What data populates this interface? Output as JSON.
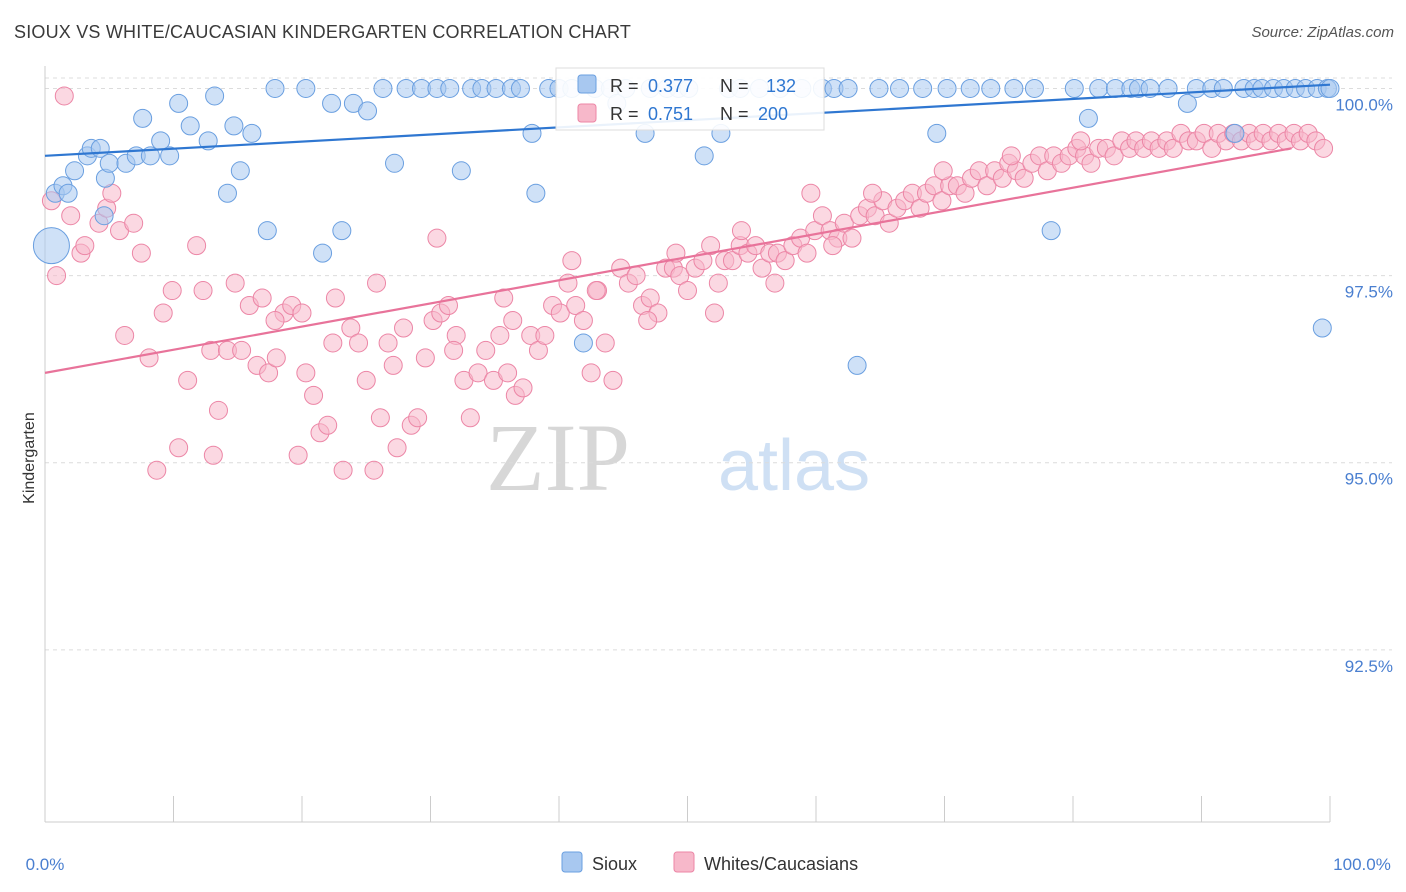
{
  "header": {
    "title": "SIOUX VS WHITE/CAUCASIAN KINDERGARTEN CORRELATION CHART",
    "source": "Source: ZipAtlas.com"
  },
  "watermark": {
    "zip": "ZIP",
    "atlas": "atlas"
  },
  "colors": {
    "sioux_fill": "#a8c8f0",
    "sioux_stroke": "#6a9fe0",
    "sioux_line": "#2f77d1",
    "white_fill": "#f7b8ca",
    "white_stroke": "#ec86a6",
    "white_line": "#e8739a",
    "tick_label": "#4a7fd0",
    "grid": "#dcdcdc"
  },
  "legend_box": {
    "rows": [
      {
        "r_label": "R =",
        "r_value": "0.377",
        "n_label": "N =",
        "n_value": "132"
      },
      {
        "r_label": "R =",
        "r_value": "0.751",
        "n_label": "N =",
        "n_value": "200"
      }
    ]
  },
  "bottom_legend": {
    "items": [
      "Sioux",
      "Whites/Caucasians"
    ]
  },
  "chart_data": {
    "type": "scatter",
    "title": "SIOUX VS WHITE/CAUCASIAN KINDERGARTEN CORRELATION CHART",
    "xlabel": "",
    "ylabel": "Kindergarten",
    "xlim": [
      0,
      100
    ],
    "ylim": [
      90.2,
      100.3
    ],
    "x_tick_labels": [
      "0.0%",
      "100.0%"
    ],
    "y_ticks": [
      92.5,
      95.0,
      97.5,
      100.0
    ],
    "y_tick_labels": [
      "92.5%",
      "95.0%",
      "97.5%",
      "100.0%"
    ],
    "grid": true,
    "legend_position": "bottom-center",
    "series": [
      {
        "name": "Sioux",
        "r": 0.377,
        "n": 132,
        "trend": {
          "x": [
            0,
            100
          ],
          "y": [
            99.1,
            100.05
          ]
        },
        "points": [
          [
            0.5,
            97.9
          ],
          [
            0.8,
            98.6
          ],
          [
            1.4,
            98.7
          ],
          [
            1.8,
            98.6
          ],
          [
            2.3,
            98.9
          ],
          [
            3.3,
            99.1
          ],
          [
            3.6,
            99.2
          ],
          [
            4.3,
            99.2
          ],
          [
            4.7,
            98.8
          ],
          [
            5.0,
            99.0
          ],
          [
            4.6,
            98.3
          ],
          [
            6.3,
            99.0
          ],
          [
            7.1,
            99.1
          ],
          [
            7.6,
            99.6
          ],
          [
            8.2,
            99.1
          ],
          [
            9.0,
            99.3
          ],
          [
            9.7,
            99.1
          ],
          [
            10.4,
            99.8
          ],
          [
            11.3,
            99.5
          ],
          [
            12.7,
            99.3
          ],
          [
            13.2,
            99.9
          ],
          [
            14.2,
            98.6
          ],
          [
            14.7,
            99.5
          ],
          [
            15.2,
            98.9
          ],
          [
            16.1,
            99.4
          ],
          [
            17.3,
            98.1
          ],
          [
            17.9,
            100.0
          ],
          [
            20.3,
            100.0
          ],
          [
            21.6,
            97.8
          ],
          [
            22.3,
            99.8
          ],
          [
            23.1,
            98.1
          ],
          [
            24.0,
            99.8
          ],
          [
            25.1,
            99.7
          ],
          [
            26.3,
            100.0
          ],
          [
            27.2,
            99.0
          ],
          [
            28.1,
            100.0
          ],
          [
            29.3,
            100.0
          ],
          [
            30.5,
            100.0
          ],
          [
            31.5,
            100.0
          ],
          [
            32.4,
            98.9
          ],
          [
            33.2,
            100.0
          ],
          [
            34.0,
            100.0
          ],
          [
            35.1,
            100.0
          ],
          [
            36.3,
            100.0
          ],
          [
            37.0,
            100.0
          ],
          [
            37.9,
            99.4
          ],
          [
            38.2,
            98.6
          ],
          [
            39.2,
            100.0
          ],
          [
            40.0,
            100.0
          ],
          [
            41.0,
            100.0
          ],
          [
            41.9,
            96.6
          ],
          [
            42.8,
            100.0
          ],
          [
            44.0,
            100.0
          ],
          [
            44.5,
            99.8
          ],
          [
            45.2,
            100.0
          ],
          [
            46.7,
            99.4
          ],
          [
            47.1,
            100.0
          ],
          [
            48.4,
            100.0
          ],
          [
            49.3,
            100.0
          ],
          [
            50.1,
            100.0
          ],
          [
            51.3,
            99.1
          ],
          [
            52.6,
            99.4
          ],
          [
            53.2,
            100.0
          ],
          [
            54.1,
            100.0
          ],
          [
            55.6,
            100.0
          ],
          [
            57.2,
            100.0
          ],
          [
            58.9,
            100.0
          ],
          [
            60.5,
            100.0
          ],
          [
            61.4,
            100.0
          ],
          [
            62.5,
            100.0
          ],
          [
            63.2,
            96.3
          ],
          [
            64.9,
            100.0
          ],
          [
            66.5,
            100.0
          ],
          [
            68.3,
            100.0
          ],
          [
            69.4,
            99.4
          ],
          [
            70.2,
            100.0
          ],
          [
            72.0,
            100.0
          ],
          [
            73.6,
            100.0
          ],
          [
            75.4,
            100.0
          ],
          [
            77.0,
            100.0
          ],
          [
            78.3,
            98.1
          ],
          [
            80.1,
            100.0
          ],
          [
            81.2,
            99.6
          ],
          [
            82.0,
            100.0
          ],
          [
            83.3,
            100.0
          ],
          [
            84.5,
            100.0
          ],
          [
            85.1,
            100.0
          ],
          [
            86.0,
            100.0
          ],
          [
            87.4,
            100.0
          ],
          [
            88.9,
            99.8
          ],
          [
            89.6,
            100.0
          ],
          [
            90.8,
            100.0
          ],
          [
            91.7,
            100.0
          ],
          [
            92.6,
            99.4
          ],
          [
            93.3,
            100.0
          ],
          [
            94.1,
            100.0
          ],
          [
            94.7,
            100.0
          ],
          [
            95.6,
            100.0
          ],
          [
            96.4,
            100.0
          ],
          [
            97.3,
            100.0
          ],
          [
            98.1,
            100.0
          ],
          [
            99.0,
            100.0
          ],
          [
            99.4,
            96.8
          ],
          [
            99.8,
            100.0
          ],
          [
            100.0,
            100.0
          ]
        ]
      },
      {
        "name": "Whites/Caucasians",
        "r": 0.751,
        "n": 200,
        "trend": {
          "x": [
            0,
            97
          ],
          "y": [
            96.2,
            99.2
          ]
        },
        "points": [
          [
            0.5,
            98.5
          ],
          [
            0.9,
            97.5
          ],
          [
            1.5,
            99.9
          ],
          [
            2.0,
            98.3
          ],
          [
            2.8,
            97.8
          ],
          [
            3.1,
            97.9
          ],
          [
            4.2,
            98.2
          ],
          [
            4.8,
            98.4
          ],
          [
            5.2,
            98.6
          ],
          [
            5.8,
            98.1
          ],
          [
            6.2,
            96.7
          ],
          [
            6.9,
            98.2
          ],
          [
            7.5,
            97.8
          ],
          [
            8.1,
            96.4
          ],
          [
            8.7,
            94.9
          ],
          [
            9.2,
            97.0
          ],
          [
            9.9,
            97.3
          ],
          [
            10.4,
            95.2
          ],
          [
            11.1,
            96.1
          ],
          [
            11.8,
            97.9
          ],
          [
            12.3,
            97.3
          ],
          [
            12.9,
            96.5
          ],
          [
            13.5,
            95.7
          ],
          [
            14.2,
            96.5
          ],
          [
            14.8,
            97.4
          ],
          [
            15.3,
            96.5
          ],
          [
            15.9,
            97.1
          ],
          [
            16.5,
            96.3
          ],
          [
            16.9,
            97.2
          ],
          [
            17.4,
            96.2
          ],
          [
            18.0,
            96.4
          ],
          [
            18.6,
            97.0
          ],
          [
            19.2,
            97.1
          ],
          [
            19.7,
            95.1
          ],
          [
            20.3,
            96.2
          ],
          [
            20.9,
            95.9
          ],
          [
            21.4,
            95.4
          ],
          [
            22.0,
            95.5
          ],
          [
            22.6,
            97.2
          ],
          [
            23.2,
            94.9
          ],
          [
            23.8,
            96.8
          ],
          [
            24.4,
            96.6
          ],
          [
            25.0,
            96.1
          ],
          [
            25.6,
            94.9
          ],
          [
            26.1,
            95.6
          ],
          [
            26.7,
            96.6
          ],
          [
            27.4,
            95.2
          ],
          [
            27.9,
            96.8
          ],
          [
            28.5,
            95.5
          ],
          [
            29.0,
            95.6
          ],
          [
            29.6,
            96.4
          ],
          [
            30.2,
            96.9
          ],
          [
            30.8,
            97.0
          ],
          [
            31.4,
            97.1
          ],
          [
            32.0,
            96.7
          ],
          [
            32.6,
            96.1
          ],
          [
            33.1,
            95.6
          ],
          [
            33.7,
            96.2
          ],
          [
            34.3,
            96.5
          ],
          [
            34.9,
            96.1
          ],
          [
            35.4,
            96.7
          ],
          [
            36.0,
            96.2
          ],
          [
            36.6,
            95.9
          ],
          [
            37.2,
            96.0
          ],
          [
            37.8,
            96.7
          ],
          [
            38.4,
            96.5
          ],
          [
            38.9,
            96.7
          ],
          [
            39.5,
            97.1
          ],
          [
            40.1,
            97.0
          ],
          [
            40.7,
            97.4
          ],
          [
            41.3,
            97.1
          ],
          [
            41.9,
            96.9
          ],
          [
            42.5,
            96.2
          ],
          [
            43.0,
            97.3
          ],
          [
            43.6,
            96.6
          ],
          [
            44.2,
            96.1
          ],
          [
            44.8,
            97.6
          ],
          [
            45.4,
            97.4
          ],
          [
            46.0,
            97.5
          ],
          [
            46.5,
            97.1
          ],
          [
            47.1,
            97.2
          ],
          [
            47.7,
            97.0
          ],
          [
            48.3,
            97.6
          ],
          [
            48.9,
            97.6
          ],
          [
            49.4,
            97.5
          ],
          [
            50.0,
            97.3
          ],
          [
            50.6,
            97.6
          ],
          [
            51.2,
            97.7
          ],
          [
            51.8,
            97.9
          ],
          [
            52.4,
            97.4
          ],
          [
            52.9,
            97.7
          ],
          [
            53.5,
            97.7
          ],
          [
            54.1,
            97.9
          ],
          [
            54.7,
            97.8
          ],
          [
            55.3,
            97.9
          ],
          [
            55.8,
            97.6
          ],
          [
            56.4,
            97.8
          ],
          [
            57.0,
            97.8
          ],
          [
            57.6,
            97.7
          ],
          [
            58.2,
            97.9
          ],
          [
            58.8,
            98.0
          ],
          [
            59.3,
            97.8
          ],
          [
            59.9,
            98.1
          ],
          [
            60.5,
            98.3
          ],
          [
            61.1,
            98.1
          ],
          [
            61.7,
            98.0
          ],
          [
            62.2,
            98.2
          ],
          [
            62.8,
            98.0
          ],
          [
            63.4,
            98.3
          ],
          [
            64.0,
            98.4
          ],
          [
            64.6,
            98.3
          ],
          [
            65.2,
            98.5
          ],
          [
            65.7,
            98.2
          ],
          [
            66.3,
            98.4
          ],
          [
            66.9,
            98.5
          ],
          [
            67.5,
            98.6
          ],
          [
            68.1,
            98.4
          ],
          [
            68.6,
            98.6
          ],
          [
            69.2,
            98.7
          ],
          [
            69.8,
            98.5
          ],
          [
            70.4,
            98.7
          ],
          [
            71.0,
            98.7
          ],
          [
            71.6,
            98.6
          ],
          [
            72.1,
            98.8
          ],
          [
            72.7,
            98.9
          ],
          [
            73.3,
            98.7
          ],
          [
            73.9,
            98.9
          ],
          [
            74.5,
            98.8
          ],
          [
            75.0,
            99.0
          ],
          [
            75.6,
            98.9
          ],
          [
            76.2,
            98.8
          ],
          [
            76.8,
            99.0
          ],
          [
            77.4,
            99.1
          ],
          [
            78.0,
            98.9
          ],
          [
            78.5,
            99.1
          ],
          [
            79.1,
            99.0
          ],
          [
            79.7,
            99.1
          ],
          [
            80.3,
            99.2
          ],
          [
            80.9,
            99.1
          ],
          [
            81.4,
            99.0
          ],
          [
            82.0,
            99.2
          ],
          [
            82.6,
            99.2
          ],
          [
            83.2,
            99.1
          ],
          [
            83.8,
            99.3
          ],
          [
            84.4,
            99.2
          ],
          [
            84.9,
            99.3
          ],
          [
            85.5,
            99.2
          ],
          [
            86.1,
            99.3
          ],
          [
            86.7,
            99.2
          ],
          [
            87.3,
            99.3
          ],
          [
            87.8,
            99.2
          ],
          [
            88.4,
            99.4
          ],
          [
            89.0,
            99.3
          ],
          [
            89.6,
            99.3
          ],
          [
            90.2,
            99.4
          ],
          [
            90.8,
            99.2
          ],
          [
            91.3,
            99.4
          ],
          [
            91.9,
            99.3
          ],
          [
            92.5,
            99.4
          ],
          [
            93.1,
            99.3
          ],
          [
            93.7,
            99.4
          ],
          [
            94.2,
            99.3
          ],
          [
            94.8,
            99.4
          ],
          [
            95.4,
            99.3
          ],
          [
            96.0,
            99.4
          ],
          [
            96.6,
            99.3
          ],
          [
            97.2,
            99.4
          ],
          [
            97.7,
            99.3
          ],
          [
            98.3,
            99.4
          ],
          [
            98.9,
            99.3
          ],
          [
            99.5,
            99.2
          ],
          [
            20.0,
            97.0
          ],
          [
            25.8,
            97.4
          ],
          [
            30.5,
            98.0
          ],
          [
            35.7,
            97.2
          ],
          [
            41.0,
            97.7
          ],
          [
            46.9,
            96.9
          ],
          [
            52.1,
            97.0
          ],
          [
            56.8,
            97.4
          ],
          [
            61.3,
            97.9
          ],
          [
            13.1,
            95.1
          ],
          [
            17.9,
            96.9
          ],
          [
            22.4,
            96.6
          ],
          [
            27.1,
            96.3
          ],
          [
            31.8,
            96.5
          ],
          [
            36.4,
            96.9
          ],
          [
            42.9,
            97.3
          ],
          [
            49.1,
            97.8
          ],
          [
            54.2,
            98.1
          ],
          [
            59.6,
            98.6
          ],
          [
            64.4,
            98.6
          ],
          [
            69.9,
            98.9
          ],
          [
            75.2,
            99.1
          ],
          [
            80.6,
            99.3
          ]
        ]
      }
    ]
  }
}
